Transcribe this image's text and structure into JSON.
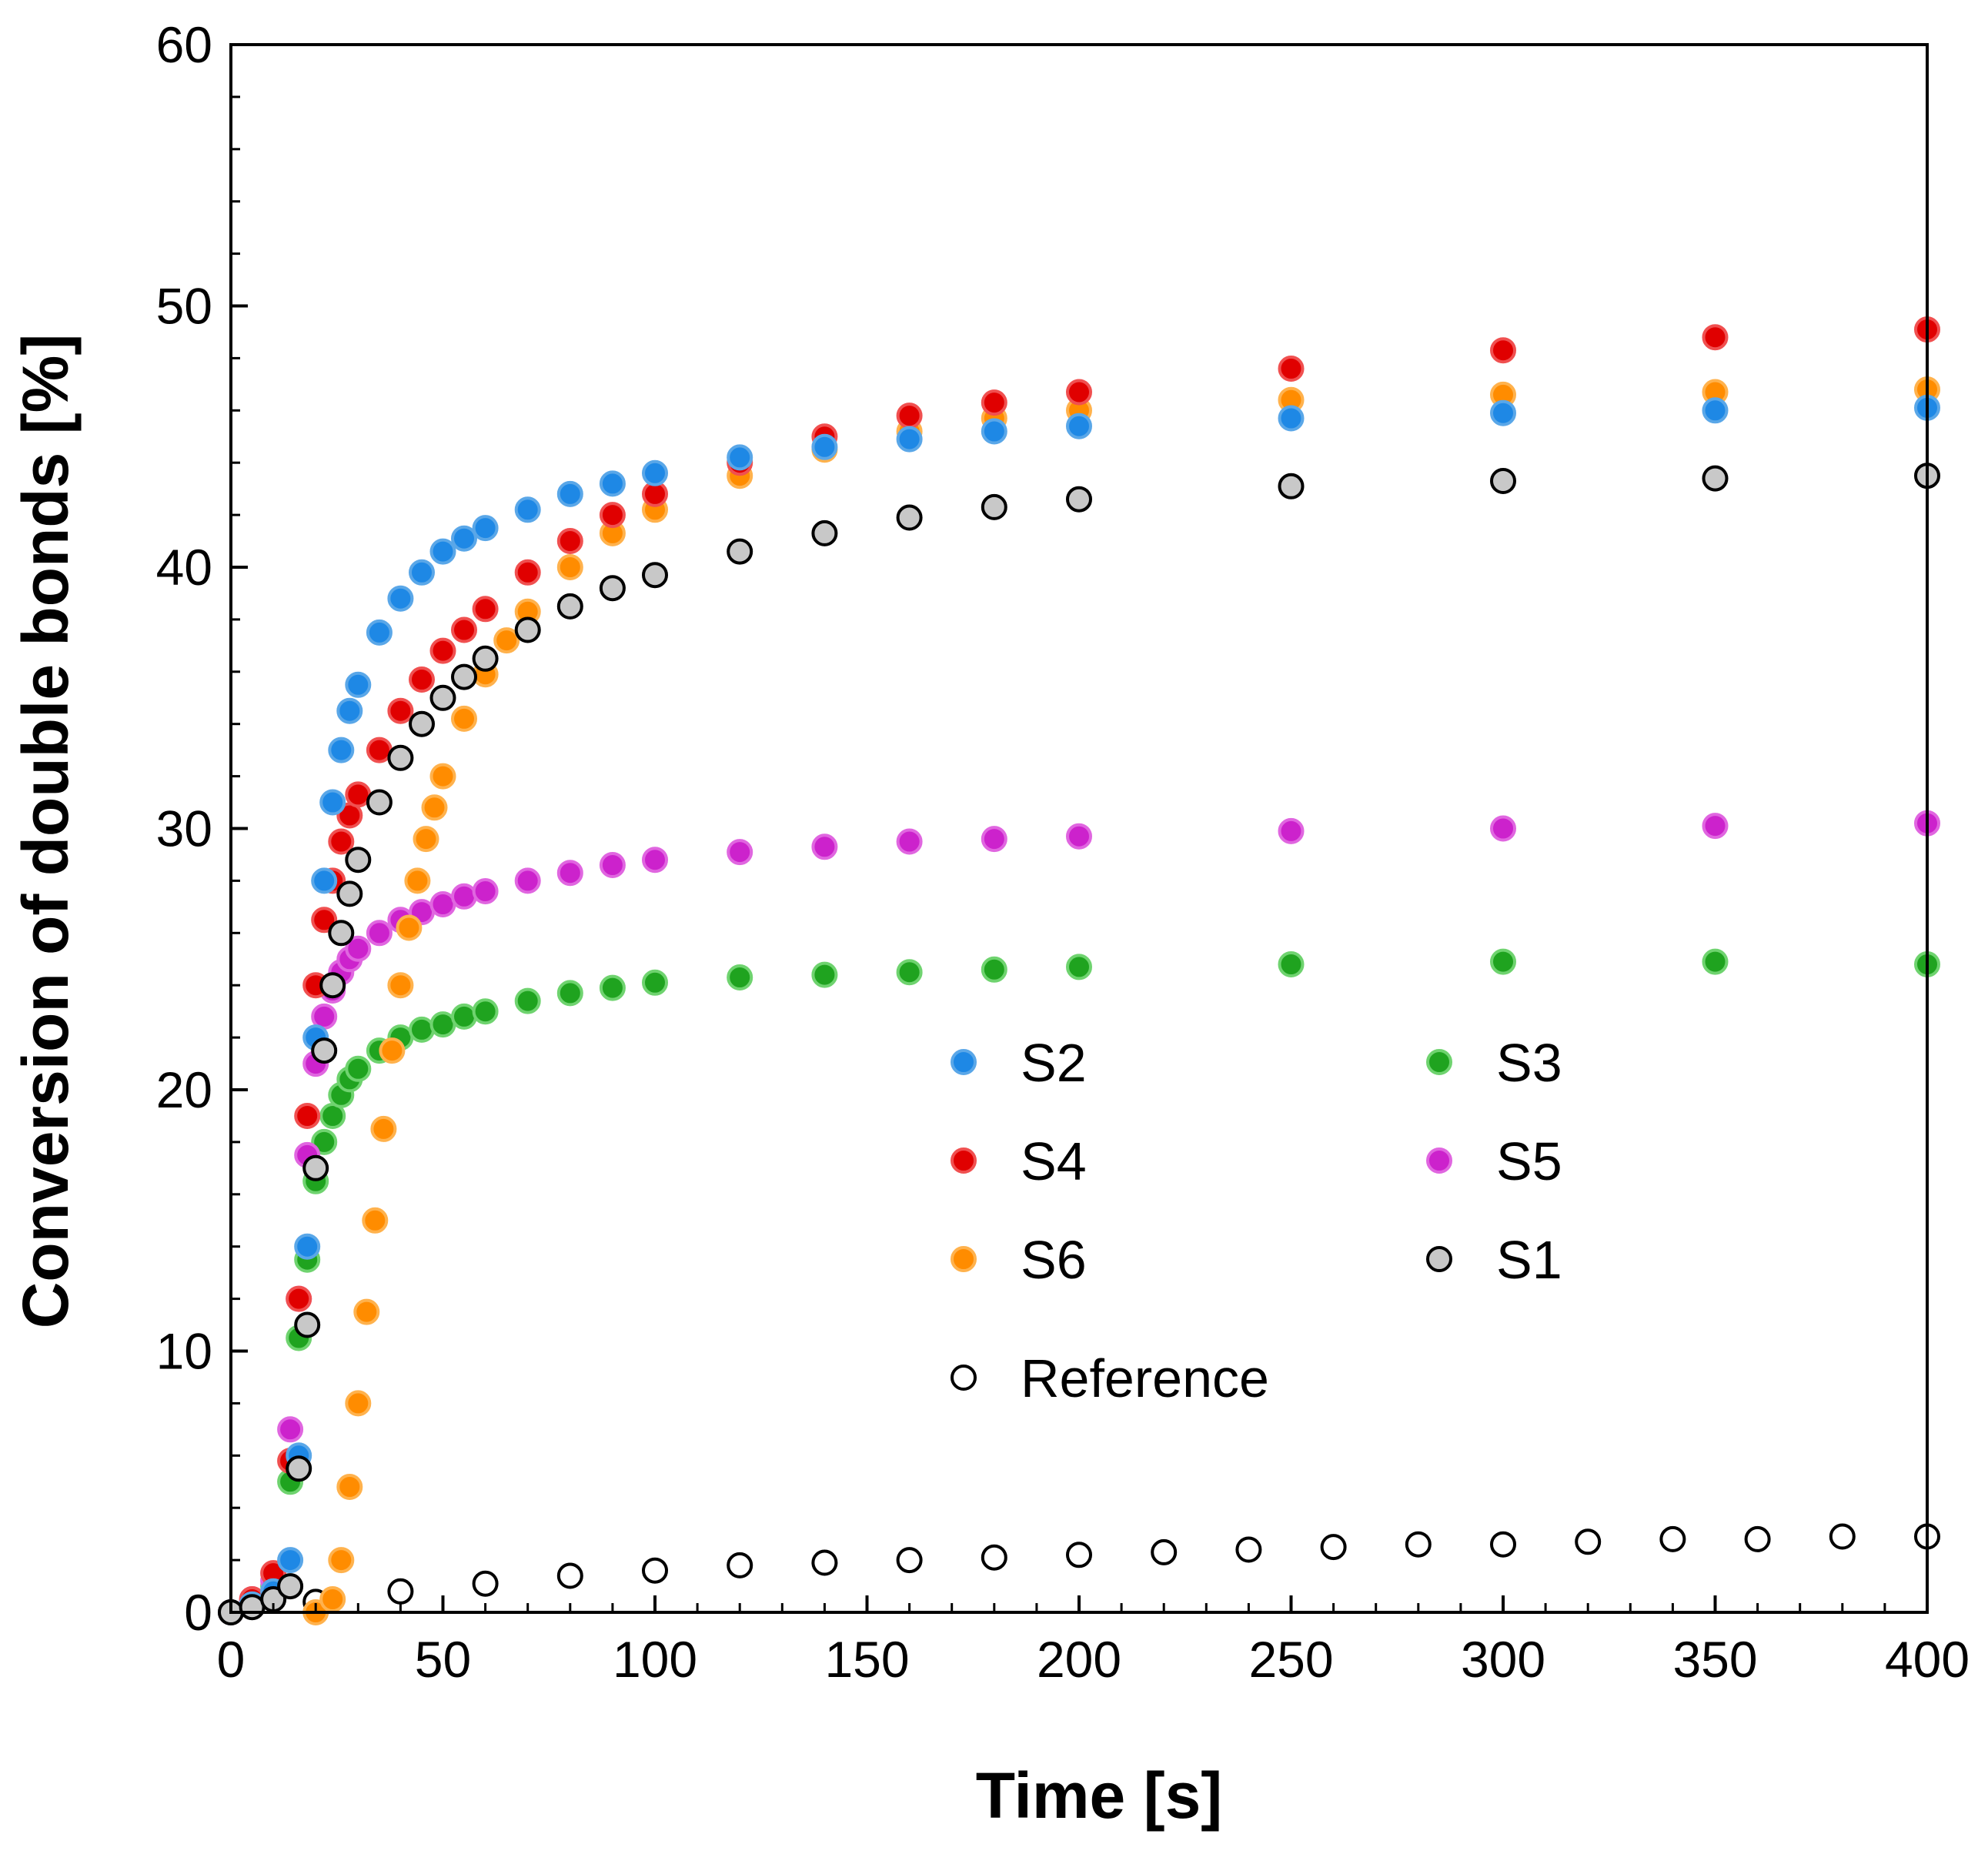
{
  "chart_data": {
    "type": "scatter",
    "xlabel": "Time [s]",
    "ylabel": "Conversion of double bonds [%]",
    "xlim": [
      0,
      400
    ],
    "ylim": [
      0,
      60
    ],
    "xticks": [
      "0",
      "50",
      "100",
      "150",
      "200",
      "250",
      "300",
      "350",
      "400"
    ],
    "yticks": [
      "0",
      "10",
      "20",
      "30",
      "40",
      "50",
      "60"
    ],
    "grid": false,
    "legend_position": "center-right",
    "series": [
      {
        "name": "S2",
        "color": "#1E88E5",
        "edge": "#5aa7e8",
        "x": [
          0,
          5,
          10,
          14,
          16,
          18,
          20,
          22,
          24,
          26,
          28,
          30,
          35,
          40,
          45,
          50,
          55,
          60,
          70,
          80,
          90,
          100,
          120,
          140,
          160,
          180,
          200,
          250,
          300,
          350,
          400
        ],
        "y": [
          0,
          0.3,
          0.8,
          2.0,
          6.0,
          14.0,
          22.0,
          28.0,
          31.0,
          33.0,
          34.5,
          35.5,
          37.5,
          38.8,
          39.8,
          40.6,
          41.1,
          41.5,
          42.2,
          42.8,
          43.2,
          43.6,
          44.2,
          44.6,
          44.9,
          45.2,
          45.4,
          45.7,
          45.9,
          46.0,
          46.1
        ]
      },
      {
        "name": "S4",
        "color": "#E00000",
        "edge": "#f05050",
        "x": [
          0,
          5,
          10,
          14,
          16,
          18,
          20,
          22,
          24,
          26,
          28,
          30,
          35,
          40,
          45,
          50,
          55,
          60,
          70,
          80,
          90,
          100,
          120,
          140,
          160,
          180,
          200,
          250,
          300,
          350,
          400
        ],
        "y": [
          0,
          0.5,
          1.5,
          5.8,
          12.0,
          19.0,
          24.0,
          26.5,
          28.0,
          29.5,
          30.5,
          31.3,
          33.0,
          34.5,
          35.7,
          36.8,
          37.6,
          38.4,
          39.8,
          41.0,
          42.0,
          42.8,
          44.0,
          45.0,
          45.8,
          46.3,
          46.7,
          47.6,
          48.3,
          48.8,
          49.1
        ]
      },
      {
        "name": "S6",
        "color": "#FF8C00",
        "edge": "#ffb24d",
        "x": [
          0,
          20,
          24,
          26,
          28,
          30,
          32,
          34,
          36,
          38,
          40,
          42,
          44,
          46,
          48,
          50,
          55,
          60,
          65,
          70,
          80,
          90,
          100,
          120,
          140,
          160,
          180,
          200,
          250,
          300,
          350,
          400
        ],
        "y": [
          0,
          0,
          0.5,
          2.0,
          4.8,
          8.0,
          11.5,
          15.0,
          18.5,
          21.5,
          24.0,
          26.2,
          28.0,
          29.6,
          30.8,
          32.0,
          34.2,
          35.9,
          37.2,
          38.3,
          40.0,
          41.3,
          42.2,
          43.5,
          44.5,
          45.2,
          45.7,
          46.0,
          46.4,
          46.6,
          46.7,
          46.8
        ]
      },
      {
        "name": "S3",
        "color": "#1FA31F",
        "edge": "#6fd36f",
        "x": [
          0,
          5,
          10,
          14,
          16,
          18,
          20,
          22,
          24,
          26,
          28,
          30,
          35,
          40,
          45,
          50,
          55,
          60,
          70,
          80,
          90,
          100,
          120,
          140,
          160,
          180,
          200,
          250,
          300,
          350,
          400
        ],
        "y": [
          0,
          0.3,
          1.0,
          5.0,
          10.5,
          13.5,
          16.5,
          18.0,
          19.0,
          19.8,
          20.4,
          20.8,
          21.5,
          22.0,
          22.3,
          22.5,
          22.8,
          23.0,
          23.4,
          23.7,
          23.9,
          24.1,
          24.3,
          24.4,
          24.5,
          24.6,
          24.7,
          24.8,
          24.9,
          24.9,
          24.8
        ]
      },
      {
        "name": "S5",
        "color": "#CC22CC",
        "edge": "#e066e0",
        "x": [
          0,
          5,
          10,
          14,
          16,
          18,
          20,
          22,
          24,
          26,
          28,
          30,
          35,
          40,
          45,
          50,
          55,
          60,
          70,
          80,
          90,
          100,
          120,
          140,
          160,
          180,
          200,
          250,
          300,
          350,
          400
        ],
        "y": [
          0,
          0.5,
          1.2,
          7.0,
          12.0,
          17.5,
          21.0,
          22.8,
          23.8,
          24.5,
          25.0,
          25.4,
          26.0,
          26.5,
          26.8,
          27.1,
          27.4,
          27.6,
          28.0,
          28.3,
          28.6,
          28.8,
          29.1,
          29.3,
          29.5,
          29.6,
          29.7,
          29.9,
          30.0,
          30.1,
          30.2
        ]
      },
      {
        "name": "S1",
        "color": "#C8C8C8",
        "edge": "#000000",
        "x": [
          0,
          5,
          10,
          14,
          16,
          18,
          20,
          22,
          24,
          26,
          28,
          30,
          35,
          40,
          45,
          50,
          55,
          60,
          70,
          80,
          90,
          100,
          120,
          140,
          160,
          180,
          200,
          250,
          300,
          350,
          400
        ],
        "y": [
          0,
          0.2,
          0.5,
          1.0,
          5.5,
          11.0,
          17.0,
          21.5,
          24.0,
          26.0,
          27.5,
          28.8,
          31.0,
          32.7,
          34.0,
          35.0,
          35.8,
          36.5,
          37.6,
          38.5,
          39.2,
          39.7,
          40.6,
          41.3,
          41.9,
          42.3,
          42.6,
          43.1,
          43.3,
          43.4,
          43.5
        ]
      },
      {
        "name": "Reference",
        "color": "#FFFFFF",
        "edge": "#000000",
        "x": [
          0,
          20,
          40,
          60,
          80,
          100,
          120,
          140,
          160,
          180,
          200,
          220,
          240,
          260,
          280,
          300,
          320,
          340,
          360,
          380,
          400
        ],
        "y": [
          0,
          0.4,
          0.8,
          1.1,
          1.4,
          1.6,
          1.8,
          1.9,
          2.0,
          2.1,
          2.2,
          2.3,
          2.4,
          2.5,
          2.6,
          2.6,
          2.7,
          2.8,
          2.8,
          2.9,
          2.9
        ]
      }
    ],
    "legend": [
      {
        "label": "S2",
        "series": "S2"
      },
      {
        "label": "S3",
        "series": "S3"
      },
      {
        "label": "S4",
        "series": "S4"
      },
      {
        "label": "S5",
        "series": "S5"
      },
      {
        "label": "S6",
        "series": "S6"
      },
      {
        "label": "S1",
        "series": "S1"
      },
      {
        "label": "Reference",
        "series": "Reference"
      }
    ]
  }
}
